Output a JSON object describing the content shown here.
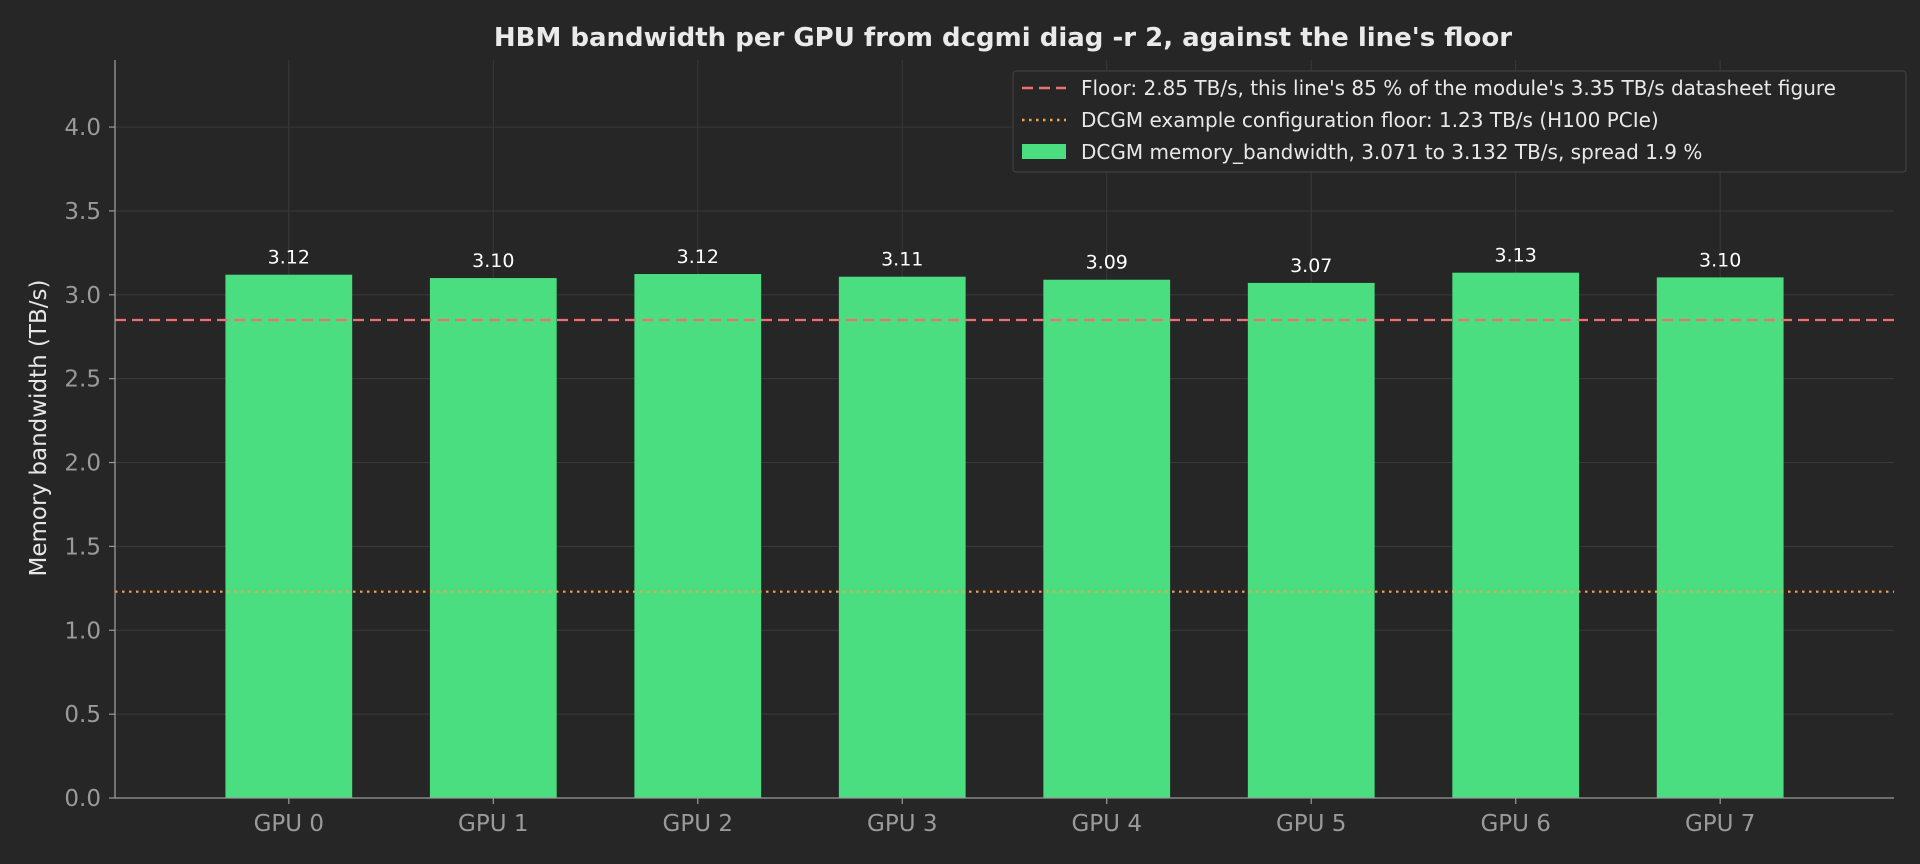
{
  "chart_data": {
    "type": "bar",
    "title": "HBM bandwidth per GPU from dcgmi diag -r 2, against the line's floor",
    "xlabel": "",
    "ylabel": "Memory bandwidth (TB/s)",
    "ylim": [
      0,
      4.4
    ],
    "yticks": [
      "0.0",
      "0.5",
      "1.0",
      "1.5",
      "2.0",
      "2.5",
      "3.0",
      "3.5",
      "4.0"
    ],
    "ytick_values": [
      0,
      0.5,
      1.0,
      1.5,
      2.0,
      2.5,
      3.0,
      3.5,
      4.0
    ],
    "categories": [
      "GPU 0",
      "GPU 1",
      "GPU 2",
      "GPU 3",
      "GPU 4",
      "GPU 5",
      "GPU 6",
      "GPU 7"
    ],
    "series": [
      {
        "name": "DCGM memory_bandwidth, 3.071 to 3.132 TB/s, spread 1.9 %",
        "values": [
          3.12,
          3.1,
          3.124,
          3.108,
          3.09,
          3.071,
          3.132,
          3.104
        ],
        "labels": [
          "3.12",
          "3.10",
          "3.12",
          "3.11",
          "3.09",
          "3.07",
          "3.13",
          "3.10"
        ],
        "color": "#4ade80"
      }
    ],
    "reference_lines": [
      {
        "name": "Floor: 2.85 TB/s, this line's 85 % of the module's 3.35 TB/s datasheet figure",
        "value": 2.85,
        "style": "dashed",
        "color": "#f07070"
      },
      {
        "name": "DCGM example configuration floor: 1.23 TB/s (H100 PCIe)",
        "value": 1.23,
        "style": "dotted",
        "color": "#f5a04a"
      }
    ],
    "grid": true,
    "legend_position": "top-right",
    "colors": {
      "background": "#262626",
      "grid": "#3a3a3a",
      "axis": "#9a9a9a"
    }
  }
}
